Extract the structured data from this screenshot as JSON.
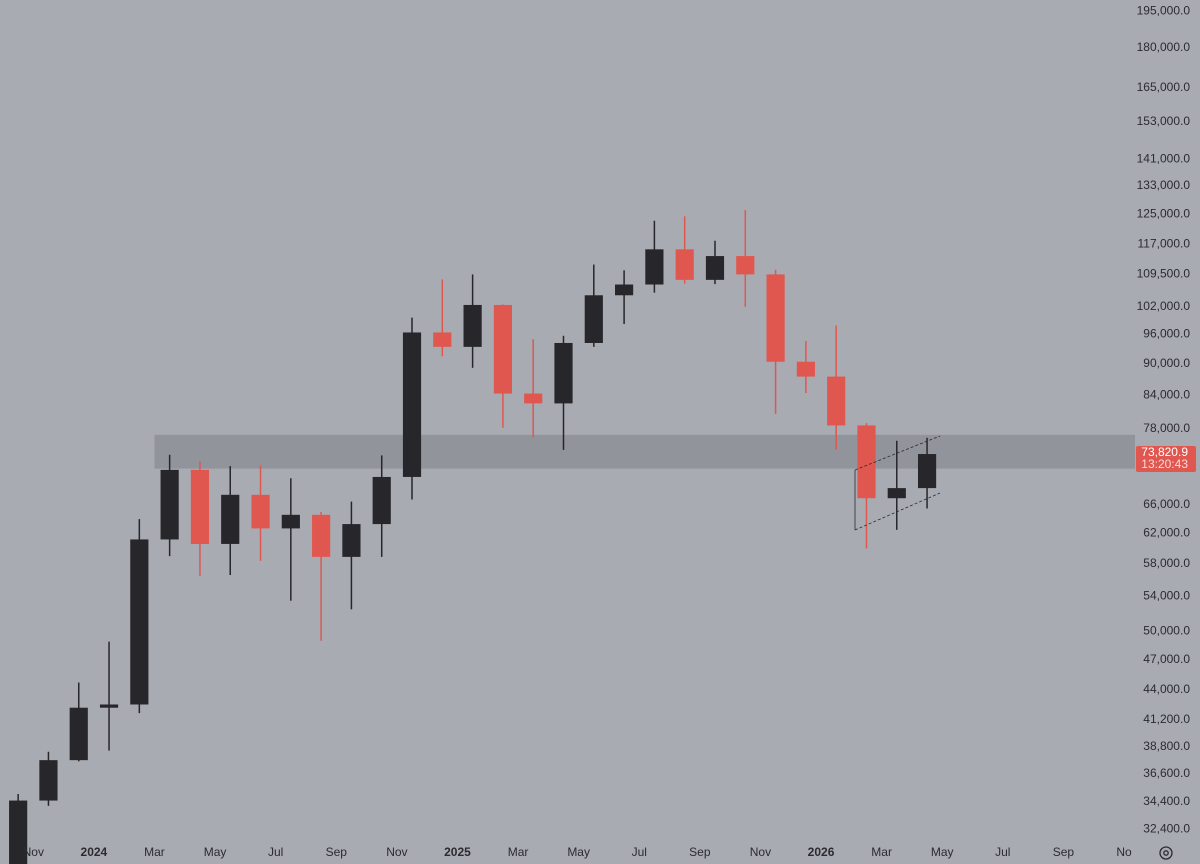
{
  "chart_data": {
    "type": "candlestick",
    "x": [
      "2023-10",
      "2023-11",
      "2023-12",
      "2024-01",
      "2024-02",
      "2024-03",
      "2024-04",
      "2024-05",
      "2024-06",
      "2024-07",
      "2024-08",
      "2024-09",
      "2024-10",
      "2024-11",
      "2024-12",
      "2025-01",
      "2025-02",
      "2025-03",
      "2025-04",
      "2025-05",
      "2025-06",
      "2025-07",
      "2025-08",
      "2025-09",
      "2025-10",
      "2025-11",
      "2025-12",
      "2026-01",
      "2026-02",
      "2026-03",
      "2026-04"
    ],
    "open": [
      30000,
      34500,
      37700,
      42300,
      42600,
      61200,
      71300,
      60600,
      67500,
      62700,
      64600,
      58900,
      63300,
      70200,
      96400,
      93400,
      102400,
      84300,
      82500,
      94200,
      104600,
      107100,
      115700,
      108200,
      114000,
      109500,
      90400,
      87500,
      78600,
      67000,
      68500
    ],
    "high": [
      35000,
      38400,
      44700,
      48900,
      64000,
      73700,
      72700,
      71900,
      72000,
      70000,
      65000,
      66500,
      73600,
      99600,
      108300,
      109500,
      102500,
      95000,
      95700,
      111900,
      110500,
      123200,
      124400,
      117900,
      126100,
      110600,
      94600,
      97900,
      79000,
      76000,
      76500
    ],
    "low": [
      29800,
      34100,
      37600,
      38500,
      41800,
      59000,
      56500,
      56600,
      58400,
      53500,
      49000,
      52500,
      58900,
      66800,
      91500,
      89200,
      78200,
      76600,
      74500,
      93400,
      98200,
      105200,
      107300,
      107200,
      102000,
      80600,
      84400,
      74500,
      60000,
      62500,
      65500
    ],
    "close": [
      34500,
      37700,
      42300,
      42600,
      61200,
      71300,
      60600,
      67500,
      62700,
      64600,
      58900,
      63300,
      70200,
      96400,
      93400,
      102400,
      84300,
      82500,
      94200,
      104600,
      107100,
      115700,
      108200,
      114000,
      109500,
      90400,
      87500,
      78600,
      67000,
      68500,
      73820.9
    ],
    "up_color": "#26262b",
    "down_color": "#e0574f",
    "log_scale": true,
    "ylim": [
      31500,
      200000
    ],
    "yticks": [
      {
        "value": 195000,
        "label": "195,000.0"
      },
      {
        "value": 180000,
        "label": "180,000.0"
      },
      {
        "value": 165000,
        "label": "165,000.0"
      },
      {
        "value": 153000,
        "label": "153,000.0"
      },
      {
        "value": 141000,
        "label": "141,000.0"
      },
      {
        "value": 133000,
        "label": "133,000.0"
      },
      {
        "value": 125000,
        "label": "125,000.0"
      },
      {
        "value": 117000,
        "label": "117,000.0"
      },
      {
        "value": 109500,
        "label": "109,500.0"
      },
      {
        "value": 102000,
        "label": "102,000.0"
      },
      {
        "value": 96000,
        "label": "96,000.0"
      },
      {
        "value": 90000,
        "label": "90,000.0"
      },
      {
        "value": 84000,
        "label": "84,000.0"
      },
      {
        "value": 78000,
        "label": "78,000.0"
      },
      {
        "value": 66000,
        "label": "66,000.0"
      },
      {
        "value": 62000,
        "label": "62,000.0"
      },
      {
        "value": 58000,
        "label": "58,000.0"
      },
      {
        "value": 54000,
        "label": "54,000.0"
      },
      {
        "value": 50000,
        "label": "50,000.0"
      },
      {
        "value": 47000,
        "label": "47,000.0"
      },
      {
        "value": 44000,
        "label": "44,000.0"
      },
      {
        "value": 41200,
        "label": "41,200.0"
      },
      {
        "value": 38800,
        "label": "38,800.0"
      },
      {
        "value": 36600,
        "label": "36,600.0"
      },
      {
        "value": 34400,
        "label": "34,400.0"
      },
      {
        "value": 32400,
        "label": "32,400.0"
      }
    ],
    "xlim": [
      "2023-10",
      "2026-11"
    ],
    "xticks": [
      {
        "value": "2023-11",
        "label": "Nov"
      },
      {
        "value": "2024-01",
        "label": "2024"
      },
      {
        "value": "2024-03",
        "label": "Mar"
      },
      {
        "value": "2024-05",
        "label": "May"
      },
      {
        "value": "2024-07",
        "label": "Jul"
      },
      {
        "value": "2024-09",
        "label": "Sep"
      },
      {
        "value": "2024-11",
        "label": "Nov"
      },
      {
        "value": "2025-01",
        "label": "2025"
      },
      {
        "value": "2025-03",
        "label": "Mar"
      },
      {
        "value": "2025-05",
        "label": "May"
      },
      {
        "value": "2025-07",
        "label": "Jul"
      },
      {
        "value": "2025-09",
        "label": "Sep"
      },
      {
        "value": "2025-11",
        "label": "Nov"
      },
      {
        "value": "2026-01",
        "label": "2026"
      },
      {
        "value": "2026-03",
        "label": "Mar"
      },
      {
        "value": "2026-05",
        "label": "May"
      },
      {
        "value": "2026-07",
        "label": "Jul"
      },
      {
        "value": "2026-09",
        "label": "Sep"
      },
      {
        "value": "2026-11",
        "label": "No"
      }
    ],
    "zone": {
      "low": 71500,
      "high": 77000,
      "start": "2024-03"
    },
    "last_price": {
      "value": 73820.9,
      "label": "73,820.9"
    },
    "countdown": "13:20:43"
  }
}
